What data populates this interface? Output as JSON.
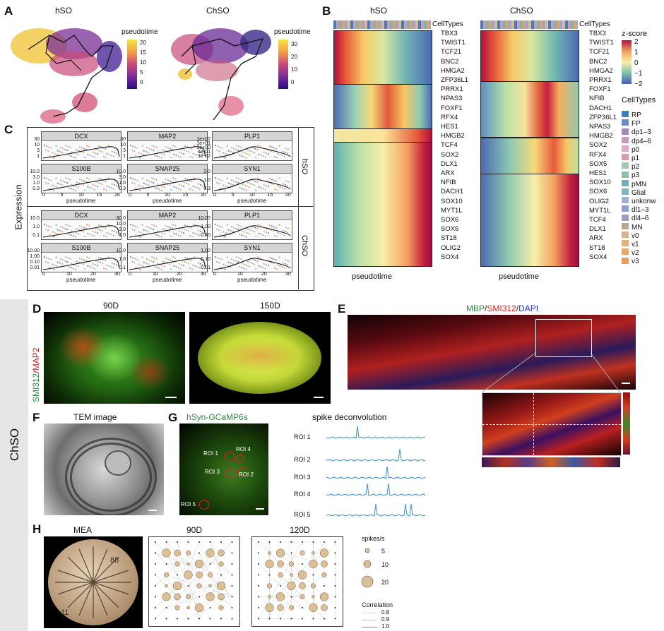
{
  "panels": {
    "A": "A",
    "B": "B",
    "C": "C",
    "D": "D",
    "E": "E",
    "F": "F",
    "G": "G",
    "H": "H"
  },
  "panelA": {
    "left_title": "hSO",
    "right_title": "ChSO",
    "left_legend": {
      "title": "pseudotime",
      "ticks": [
        "20",
        "15",
        "10",
        "5",
        "0"
      ]
    },
    "right_legend": {
      "title": "pseudotime",
      "ticks": [
        "30",
        "20",
        "10",
        "0"
      ]
    }
  },
  "panelB": {
    "left_title": "hSO",
    "right_title": "ChSO",
    "celltypes_label": "CellTypes",
    "xlabel": "pseudotime",
    "left_genes": [
      "TBX3",
      "TWIST1",
      "TCF21",
      "BNC2",
      "HMGA2",
      "ZFP36L1",
      "PRRX1",
      "NPAS3",
      "FOXF1",
      "RFX4",
      "HES1",
      "HMGB2",
      "TCF4",
      "SOX2",
      "DLX1",
      "ARX",
      "NFIB",
      "DACH1",
      "SOX10",
      "MYT1L",
      "SOX6",
      "SOX5",
      "ST18",
      "OLIG2",
      "SOX4"
    ],
    "right_genes": [
      "TBX3",
      "TWIST1",
      "TCF21",
      "BNC2",
      "HMGA2",
      "PRRX1",
      "FOXF1",
      "NFIB",
      "DACH1",
      "ZFP36L1",
      "NPAS3",
      "HMGB2",
      "SOX2",
      "RFX4",
      "SOX5",
      "HES1",
      "SOX10",
      "SOX6",
      "OLIG2",
      "MYT1L",
      "TCF4",
      "DLX1",
      "ARX",
      "ST18",
      "SOX4"
    ],
    "zscore_title": "z-score",
    "zscore_ticks": [
      "2",
      "1",
      "0",
      "−1",
      "−2"
    ],
    "legend_title": "CellTypes",
    "legend": [
      {
        "name": "RP",
        "color": "#3f7fbf"
      },
      {
        "name": "FP",
        "color": "#6a8dc8"
      },
      {
        "name": "dp1–3",
        "color": "#a589b8"
      },
      {
        "name": "dp4–6",
        "color": "#c79bbf"
      },
      {
        "name": "p0",
        "color": "#e3a8c6"
      },
      {
        "name": "p1",
        "color": "#d79ca8"
      },
      {
        "name": "p2",
        "color": "#a3c9b2"
      },
      {
        "name": "p3",
        "color": "#8fbfa7"
      },
      {
        "name": "pMN",
        "color": "#6bb0b8"
      },
      {
        "name": "Glial",
        "color": "#7fb6c2"
      },
      {
        "name": "unkonw",
        "color": "#9fb0d0"
      },
      {
        "name": "dl1–3",
        "color": "#8e9ccf"
      },
      {
        "name": "dl4–6",
        "color": "#a09dc4"
      },
      {
        "name": "MN",
        "color": "#b8a695"
      },
      {
        "name": "v0",
        "color": "#d6b48f"
      },
      {
        "name": "v1",
        "color": "#e0b27f"
      },
      {
        "name": "v2",
        "color": "#e7a96d"
      },
      {
        "name": "v3",
        "color": "#eb9c5f"
      }
    ]
  },
  "panelC": {
    "ylabel": "Expression",
    "xlabel": "pseudotime",
    "row1_label": "hSO",
    "row2_label": "ChSO",
    "hSO": [
      {
        "gene": "DCX",
        "yticks": [
          "30",
          "10",
          "3",
          "1"
        ],
        "xticks": [
          "0",
          "5",
          "10",
          "15",
          "20"
        ]
      },
      {
        "gene": "MAP2",
        "yticks": [
          "30",
          "10",
          "3",
          "1"
        ],
        "xticks": [
          "0",
          "5",
          "10",
          "15",
          "20"
        ]
      },
      {
        "gene": "PLP1",
        "yticks": [
          "1e+02",
          "1e+01",
          "1e+00",
          "1e-01",
          "1e-02"
        ],
        "xticks": [
          "0",
          "5",
          "10",
          "15",
          "20"
        ]
      },
      {
        "gene": "S100B",
        "yticks": [
          "10.0",
          "3.0",
          "1.0",
          "0.3"
        ],
        "xticks": [
          "0",
          "5",
          "10",
          "15",
          "20"
        ]
      },
      {
        "gene": "SNAP25",
        "yticks": [
          "10.0",
          "3.0",
          "1.0",
          "0.3"
        ],
        "xticks": [
          "0",
          "5",
          "10",
          "15",
          "20"
        ]
      },
      {
        "gene": "SYN1",
        "yticks": [
          "3.0",
          "1.0",
          "0.3"
        ],
        "xticks": [
          "0",
          "5",
          "10",
          "15",
          "20"
        ]
      }
    ],
    "ChSO": [
      {
        "gene": "DCX",
        "yticks": [
          "10.0",
          "1.0",
          "0.1"
        ],
        "xticks": [
          "0",
          "10",
          "20",
          "30"
        ]
      },
      {
        "gene": "MAP2",
        "yticks": [
          "30.0",
          "10.0",
          "3.0",
          "1.0"
        ],
        "xticks": [
          "0",
          "10",
          "20",
          "30"
        ]
      },
      {
        "gene": "PLP1",
        "yticks": [
          "10.00",
          "1.00",
          "0.10"
        ],
        "xticks": [
          "0",
          "10",
          "20",
          "30"
        ]
      },
      {
        "gene": "S100B",
        "yticks": [
          "10.00",
          "1.00",
          "0.10",
          "0.01"
        ],
        "xticks": [
          "0",
          "10",
          "20",
          "30"
        ]
      },
      {
        "gene": "SNAP25",
        "yticks": [
          "10.0",
          "1.0",
          "0.1"
        ],
        "xticks": [
          "0",
          "10",
          "20",
          "30"
        ]
      },
      {
        "gene": "SYN1",
        "yticks": [
          "1.00",
          "0.10",
          "0.01"
        ],
        "xticks": [
          "0",
          "10",
          "20",
          "30"
        ]
      }
    ]
  },
  "sideLabel": "ChSO",
  "panelD": {
    "stain": "SMI312/MAP2",
    "stain_green": "SMI312",
    "stain_red": "MAP2",
    "left_title": "90D",
    "right_title": "150D"
  },
  "panelE": {
    "title_green": "MBP",
    "title_red": "SMI312",
    "title_blue": "DAPI",
    "sep": "/"
  },
  "panelF": {
    "title": "TEM image"
  },
  "panelG": {
    "title": "hSyn-GCaMP6s",
    "trace_title": "spike deconvolution",
    "rois": [
      "ROI 1",
      "ROI 2",
      "ROI 3",
      "ROI 4",
      "ROI 5"
    ]
  },
  "panelH": {
    "mea_title": "MEA",
    "mea_num_top": "88",
    "mea_num_bottom": "11",
    "grid1_title": "90D",
    "grid2_title": "120D",
    "size_legend_title": "spikes/s",
    "size_legend": [
      "5",
      "10",
      "20"
    ],
    "corr_legend_title": "Correlation",
    "corr_legend": [
      "0.8",
      "0.9",
      "1.0"
    ]
  },
  "colors": {
    "green": "#2e8b3e",
    "red": "#d62020",
    "blue": "#1f33d6",
    "trace": "#3a8fd0",
    "dot": "#dcbf94"
  }
}
